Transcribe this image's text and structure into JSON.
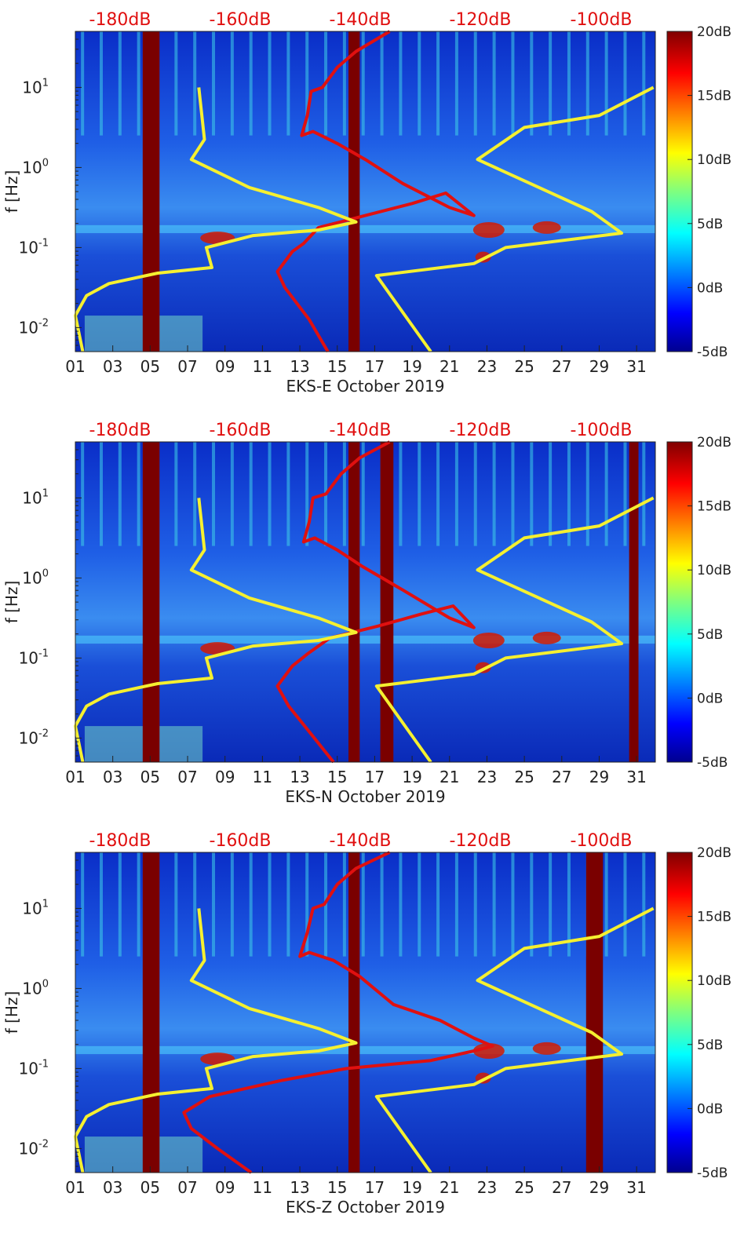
{
  "chart_data": [
    {
      "type": "heatmap",
      "title": "",
      "xlabel": "EKS-E October 2019",
      "ylabel": "f [Hz]",
      "xlim": [
        1,
        32
      ],
      "ylim_log10": [
        -2.3,
        1.7
      ],
      "y_ticks": [
        {
          "label": "10",
          "exp": "-2",
          "v": -2
        },
        {
          "label": "10",
          "exp": "-1",
          "v": -1
        },
        {
          "label": "10",
          "exp": "0",
          "v": 0
        },
        {
          "label": "10",
          "exp": "1",
          "v": 1
        }
      ],
      "top_axis_labels": [
        "-180dB",
        "-160dB",
        "-140dB",
        "-120dB",
        "-100dB"
      ],
      "colorbar": {
        "labels": [
          "20dB",
          "15dB",
          "10dB",
          "5dB",
          "0dB",
          "-5dB"
        ],
        "range_db": [
          -5,
          20
        ]
      },
      "gap_bands_days": [
        [
          4.6,
          5.5
        ],
        [
          15.6,
          16.2
        ]
      ],
      "series": [
        {
          "color": "#e01010",
          "values": [
            [
              14.5,
              -2.3
            ],
            [
              13.5,
              -1.9
            ],
            [
              12.2,
              -1.5
            ],
            [
              11.8,
              -1.3
            ],
            [
              12.6,
              -1.05
            ],
            [
              13.2,
              -0.95
            ],
            [
              14.0,
              -0.75
            ],
            [
              16.5,
              -0.6
            ],
            [
              19.0,
              -0.45
            ],
            [
              20.8,
              -0.32
            ],
            [
              22.3,
              -0.6
            ],
            [
              21.0,
              -0.5
            ],
            [
              18.5,
              -0.2
            ],
            [
              16.5,
              0.1
            ],
            [
              15.0,
              0.3
            ],
            [
              13.7,
              0.45
            ],
            [
              13.1,
              0.4
            ],
            [
              13.4,
              0.65
            ],
            [
              13.6,
              0.95
            ],
            [
              14.2,
              1.0
            ],
            [
              15.0,
              1.25
            ],
            [
              16.0,
              1.45
            ],
            [
              17.8,
              1.7
            ]
          ]
        },
        {
          "color": "#f5f030",
          "values": [
            [
              1.4,
              -2.3
            ],
            [
              1.0,
              -1.85
            ],
            [
              1.6,
              -1.6
            ],
            [
              2.8,
              -1.45
            ],
            [
              5.4,
              -1.32
            ],
            [
              8.3,
              -1.25
            ],
            [
              8.0,
              -1.0
            ],
            [
              10.5,
              -0.85
            ],
            [
              14.0,
              -0.78
            ],
            [
              16.0,
              -0.68
            ],
            [
              14.0,
              -0.5
            ],
            [
              10.3,
              -0.25
            ],
            [
              7.2,
              0.1
            ],
            [
              7.9,
              0.35
            ],
            [
              7.6,
              1.0
            ]
          ]
        },
        {
          "color": "#f5f030",
          "values": [
            [
              20.0,
              -2.3
            ],
            [
              17.1,
              -1.35
            ],
            [
              22.3,
              -1.2
            ],
            [
              24.0,
              -1.0
            ],
            [
              30.2,
              -0.82
            ],
            [
              28.6,
              -0.55
            ],
            [
              22.5,
              0.1
            ],
            [
              25.0,
              0.5
            ],
            [
              29.0,
              0.65
            ],
            [
              31.9,
              1.0
            ]
          ]
        }
      ]
    },
    {
      "type": "heatmap",
      "title": "",
      "xlabel": "EKS-N October 2019",
      "ylabel": "f [Hz]",
      "xlim": [
        1,
        32
      ],
      "ylim_log10": [
        -2.3,
        1.7
      ],
      "y_ticks": [
        {
          "label": "10",
          "exp": "-2",
          "v": -2
        },
        {
          "label": "10",
          "exp": "-1",
          "v": -1
        },
        {
          "label": "10",
          "exp": "0",
          "v": 0
        },
        {
          "label": "10",
          "exp": "1",
          "v": 1
        }
      ],
      "top_axis_labels": [
        "-180dB",
        "-160dB",
        "-140dB",
        "-120dB",
        "-100dB"
      ],
      "colorbar": {
        "labels": [
          "20dB",
          "15dB",
          "10dB",
          "5dB",
          "0dB",
          "-5dB"
        ],
        "range_db": [
          -5,
          20
        ]
      },
      "gap_bands_days": [
        [
          4.6,
          5.5
        ],
        [
          15.6,
          16.2
        ],
        [
          17.3,
          18.0
        ],
        [
          30.6,
          31.1
        ]
      ],
      "series": [
        {
          "color": "#e01010",
          "values": [
            [
              14.8,
              -2.3
            ],
            [
              13.6,
              -1.95
            ],
            [
              12.4,
              -1.6
            ],
            [
              11.8,
              -1.35
            ],
            [
              12.6,
              -1.1
            ],
            [
              13.4,
              -0.95
            ],
            [
              14.6,
              -0.75
            ],
            [
              17.2,
              -0.6
            ],
            [
              19.5,
              -0.45
            ],
            [
              21.2,
              -0.35
            ],
            [
              22.3,
              -0.62
            ],
            [
              21.0,
              -0.5
            ],
            [
              18.5,
              -0.15
            ],
            [
              16.3,
              0.15
            ],
            [
              15.0,
              0.35
            ],
            [
              13.8,
              0.5
            ],
            [
              13.2,
              0.45
            ],
            [
              13.5,
              0.7
            ],
            [
              13.7,
              1.0
            ],
            [
              14.4,
              1.05
            ],
            [
              15.2,
              1.3
            ],
            [
              16.2,
              1.5
            ],
            [
              17.8,
              1.7
            ]
          ]
        },
        {
          "color": "#f5f030",
          "values": [
            [
              1.4,
              -2.3
            ],
            [
              1.0,
              -1.85
            ],
            [
              1.6,
              -1.6
            ],
            [
              2.8,
              -1.45
            ],
            [
              5.4,
              -1.32
            ],
            [
              8.3,
              -1.25
            ],
            [
              8.0,
              -1.0
            ],
            [
              10.5,
              -0.85
            ],
            [
              14.0,
              -0.78
            ],
            [
              16.0,
              -0.68
            ],
            [
              14.0,
              -0.5
            ],
            [
              10.3,
              -0.25
            ],
            [
              7.2,
              0.1
            ],
            [
              7.9,
              0.35
            ],
            [
              7.6,
              1.0
            ]
          ]
        },
        {
          "color": "#f5f030",
          "values": [
            [
              20.0,
              -2.3
            ],
            [
              17.1,
              -1.35
            ],
            [
              22.3,
              -1.2
            ],
            [
              24.0,
              -1.0
            ],
            [
              30.2,
              -0.82
            ],
            [
              28.6,
              -0.55
            ],
            [
              22.5,
              0.1
            ],
            [
              25.0,
              0.5
            ],
            [
              29.0,
              0.65
            ],
            [
              31.9,
              1.0
            ]
          ]
        }
      ]
    },
    {
      "type": "heatmap",
      "title": "",
      "xlabel": "EKS-Z October 2019",
      "ylabel": "f [Hz]",
      "xlim": [
        1,
        32
      ],
      "ylim_log10": [
        -2.3,
        1.7
      ],
      "y_ticks": [
        {
          "label": "10",
          "exp": "-2",
          "v": -2
        },
        {
          "label": "10",
          "exp": "-1",
          "v": -1
        },
        {
          "label": "10",
          "exp": "0",
          "v": 0
        },
        {
          "label": "10",
          "exp": "1",
          "v": 1
        }
      ],
      "top_axis_labels": [
        "-180dB",
        "-160dB",
        "-140dB",
        "-120dB",
        "-100dB"
      ],
      "colorbar": {
        "labels": [
          "20dB",
          "15dB",
          "10dB",
          "5dB",
          "0dB",
          "-5dB"
        ],
        "range_db": [
          -5,
          20
        ]
      },
      "gap_bands_days": [
        [
          4.6,
          5.5
        ],
        [
          15.6,
          16.2
        ],
        [
          28.3,
          29.2
        ]
      ],
      "series": [
        {
          "color": "#e01010",
          "values": [
            [
              10.4,
              -2.3
            ],
            [
              8.6,
              -2.0
            ],
            [
              7.2,
              -1.75
            ],
            [
              6.8,
              -1.55
            ],
            [
              8.2,
              -1.35
            ],
            [
              12.0,
              -1.15
            ],
            [
              15.5,
              -1.0
            ],
            [
              20.0,
              -0.9
            ],
            [
              22.3,
              -0.78
            ],
            [
              23.3,
              -0.72
            ],
            [
              22.3,
              -0.62
            ],
            [
              20.5,
              -0.4
            ],
            [
              18.0,
              -0.2
            ],
            [
              16.2,
              0.15
            ],
            [
              14.8,
              0.35
            ],
            [
              13.5,
              0.45
            ],
            [
              13.0,
              0.4
            ],
            [
              13.4,
              0.7
            ],
            [
              13.7,
              1.0
            ],
            [
              14.3,
              1.05
            ],
            [
              15.0,
              1.3
            ],
            [
              16.0,
              1.5
            ],
            [
              17.8,
              1.7
            ]
          ]
        },
        {
          "color": "#f5f030",
          "values": [
            [
              1.4,
              -2.3
            ],
            [
              1.0,
              -1.85
            ],
            [
              1.6,
              -1.6
            ],
            [
              2.8,
              -1.45
            ],
            [
              5.4,
              -1.32
            ],
            [
              8.3,
              -1.25
            ],
            [
              8.0,
              -1.0
            ],
            [
              10.5,
              -0.85
            ],
            [
              14.0,
              -0.78
            ],
            [
              16.0,
              -0.68
            ],
            [
              14.0,
              -0.5
            ],
            [
              10.3,
              -0.25
            ],
            [
              7.2,
              0.1
            ],
            [
              7.9,
              0.35
            ],
            [
              7.6,
              1.0
            ]
          ]
        },
        {
          "color": "#f5f030",
          "values": [
            [
              20.0,
              -2.3
            ],
            [
              17.1,
              -1.35
            ],
            [
              22.3,
              -1.2
            ],
            [
              24.0,
              -1.0
            ],
            [
              30.2,
              -0.82
            ],
            [
              28.6,
              -0.55
            ],
            [
              22.5,
              0.1
            ],
            [
              25.0,
              0.5
            ],
            [
              29.0,
              0.65
            ],
            [
              31.9,
              1.0
            ]
          ]
        }
      ]
    }
  ],
  "x_tick_labels": [
    "01",
    "03",
    "05",
    "07",
    "09",
    "11",
    "13",
    "15",
    "17",
    "19",
    "21",
    "23",
    "25",
    "27",
    "29",
    "31"
  ],
  "colors": {
    "gap": "#7a0000",
    "dB_text": "#e01010",
    "bg_spectrum": "#0a2ec8"
  }
}
